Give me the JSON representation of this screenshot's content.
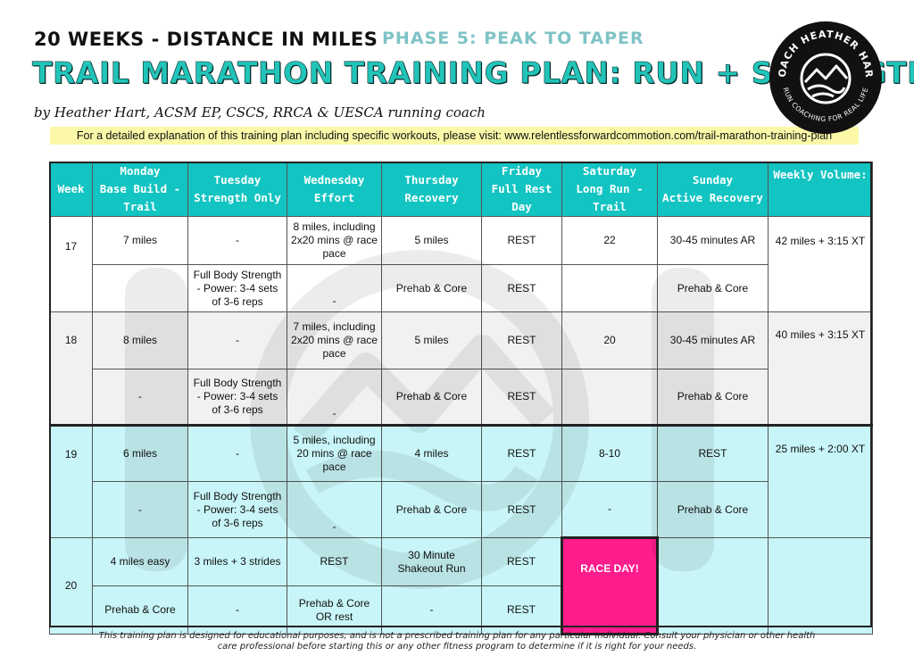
{
  "header": {
    "weeks_distance": "20 WEEKS - DISTANCE IN MILES",
    "phase": "PHASE 5: PEAK TO TAPER",
    "title": "TRAIL MARATHON TRAINING PLAN: RUN + STRENGTH",
    "byline": "by Heather Hart, ACSM EP, CSCS, RRCA & UESCA running coach",
    "url_note": "For a detailed explanation of this training plan including specific workouts, please visit: www.relentlessforwardcommotion.com/trail-marathon-training-plan"
  },
  "logo": {
    "top_text": "COACH HEATHER HART",
    "bottom_text": "RUN COACHING FOR REAL LIFE"
  },
  "table": {
    "headers": [
      {
        "l1": "Week",
        "l2": ""
      },
      {
        "l1": "Monday",
        "l2": "Base Build - Trail"
      },
      {
        "l1": "Tuesday",
        "l2": "Strength Only"
      },
      {
        "l1": "Wednesday",
        "l2": "Effort"
      },
      {
        "l1": "Thursday",
        "l2": "Recovery"
      },
      {
        "l1": "Friday",
        "l2": "Full Rest Day"
      },
      {
        "l1": "Saturday",
        "l2": "Long Run - Trail"
      },
      {
        "l1": "Sunday",
        "l2": "Active Recovery"
      },
      {
        "l1": "Weekly Volume:",
        "l2": ""
      }
    ],
    "week17": {
      "week": "17",
      "r1": [
        "7 miles",
        "-",
        "8 miles, including 2x20 mins @ race pace",
        "5 miles",
        "REST",
        "22",
        "30-45 minutes AR"
      ],
      "r2": [
        "",
        "Full Body Strength - Power: 3-4 sets of 3-6 reps",
        "-",
        "Prehab & Core",
        "REST",
        "",
        "Prehab & Core"
      ],
      "volume": "42 miles + 3:15 XT"
    },
    "week18": {
      "week": "18",
      "r1": [
        "8 miles",
        "-",
        "7 miles, including 2x20 mins @ race pace",
        "5 miles",
        "REST",
        "20",
        "30-45 minutes AR"
      ],
      "r2": [
        "-",
        "Full Body Strength - Power: 3-4 sets of 3-6 reps",
        "-",
        "Prehab & Core",
        "REST",
        "",
        "Prehab & Core"
      ],
      "volume": "40 miles + 3:15 XT"
    },
    "week19": {
      "week": "19",
      "r1": [
        "6 miles",
        "-",
        "5 miles, including 20 mins @ race pace",
        "4 miles",
        "REST",
        "8-10",
        "REST"
      ],
      "r2": [
        "-",
        "Full Body Strength - Power: 3-4 sets of 3-6 reps",
        "-",
        "Prehab & Core",
        "REST",
        "-",
        "Prehab & Core"
      ],
      "volume": "25 miles + 2:00 XT"
    },
    "week20": {
      "week": "20",
      "r1": [
        "4 miles easy",
        "3 miles + 3 strides",
        "REST",
        "30 Minute Shakeout Run",
        "REST",
        "RACE DAY!",
        ""
      ],
      "r2": [
        "Prehab & Core",
        "-",
        "Prehab & Core OR rest",
        "-",
        "REST",
        "",
        ""
      ],
      "volume": ""
    }
  },
  "footer": {
    "disclaimer": "This training plan is designed for educational purposes, and is not a prescribed training plan for any particular individual. Consult your physician or other health care professional before starting this or any other fitness program to determine if it is right for your needs."
  },
  "colors": {
    "title": "#22c4b9",
    "phase": "#7fc3c6",
    "header_bg": "#12c4c2",
    "race_day": "#ff1c8d",
    "highlight": "#fbf8a8",
    "taper_rows": "#c8f5f7"
  }
}
